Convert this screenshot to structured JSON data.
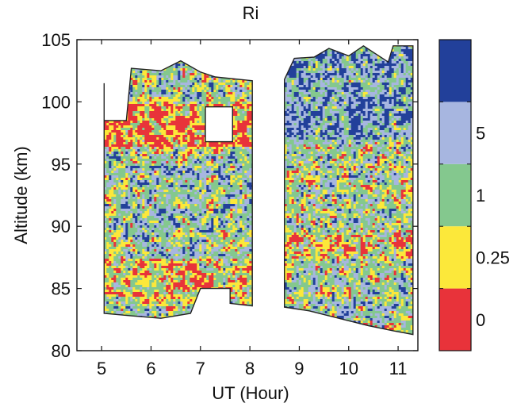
{
  "chart_data": {
    "type": "heatmap",
    "title": "Ri",
    "xlabel": "UT (Hour)",
    "ylabel": "Altitude (km)",
    "xlim": [
      4.5,
      11.4
    ],
    "ylim": [
      80,
      105
    ],
    "xticks": [
      5,
      6,
      7,
      8,
      9,
      10,
      11
    ],
    "yticks": [
      80,
      85,
      90,
      95,
      100,
      105
    ],
    "colorbar": {
      "levels": [
        {
          "label": "0",
          "color": "#e8333a"
        },
        {
          "label": "0.25",
          "color": "#fce83a"
        },
        {
          "label": "1",
          "color": "#84c88e"
        },
        {
          "label": "5",
          "color": "#a7b6e0"
        },
        {
          "label": "",
          "color": "#22409a"
        }
      ]
    },
    "data_segments": [
      {
        "ut_range": [
          5.05,
          8.05
        ],
        "altitude_bottom": [
          [
            5.05,
            83.0
          ],
          [
            5.6,
            82.8
          ],
          [
            6.2,
            82.6
          ],
          [
            6.8,
            83.0
          ],
          [
            7.0,
            85.0
          ],
          [
            7.6,
            85.0
          ],
          [
            7.6,
            83.8
          ],
          [
            8.05,
            83.6
          ]
        ],
        "altitude_top": [
          [
            5.05,
            101.5
          ],
          [
            5.05,
            98.5
          ],
          [
            5.5,
            98.5
          ],
          [
            5.6,
            102.7
          ],
          [
            6.2,
            102.5
          ],
          [
            6.6,
            103.3
          ],
          [
            7.0,
            102.4
          ],
          [
            7.3,
            102.0
          ],
          [
            8.05,
            101.7
          ]
        ],
        "holes": [
          {
            "ut": [
              7.1,
              7.65
            ],
            "alt": [
              96.8,
              99.6
            ]
          }
        ]
      },
      {
        "ut_range": [
          8.7,
          11.3
        ],
        "altitude_bottom": [
          [
            8.7,
            83.5
          ],
          [
            9.2,
            83.2
          ],
          [
            9.8,
            82.6
          ],
          [
            10.4,
            82.0
          ],
          [
            10.9,
            81.6
          ],
          [
            11.3,
            81.3
          ]
        ],
        "altitude_top": [
          [
            8.7,
            101.8
          ],
          [
            8.9,
            103.5
          ],
          [
            9.3,
            103.6
          ],
          [
            9.6,
            104.3
          ],
          [
            10.0,
            103.7
          ],
          [
            10.3,
            104.5
          ],
          [
            10.8,
            103.2
          ],
          [
            10.9,
            104.5
          ],
          [
            11.3,
            104.5
          ]
        ]
      }
    ],
    "grid": false
  }
}
